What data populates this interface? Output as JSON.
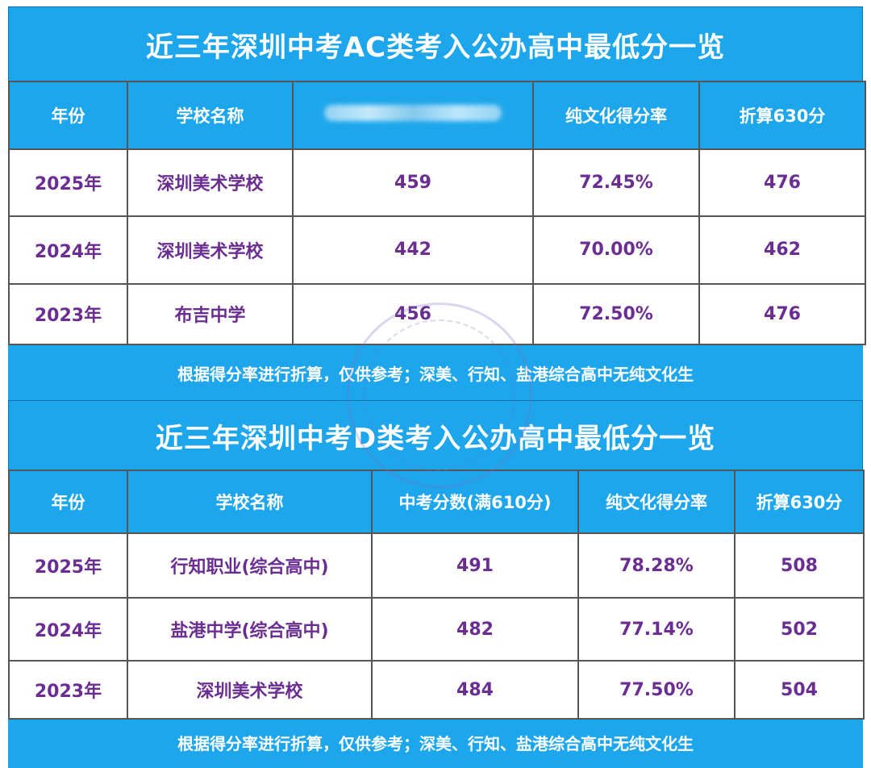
{
  "table_ac": {
    "title": "近三年深圳中考AC类考入公办高中最低分一览",
    "headers": [
      "年份",
      "学校名称",
      "",
      "纯文化得分率",
      "折算630分"
    ],
    "rows": [
      [
        "2025年",
        "深圳美术学校",
        "459",
        "72.45%",
        "476"
      ],
      [
        "2024年",
        "深圳美术学校",
        "442",
        "70.00%",
        "462"
      ],
      [
        "2023年",
        "布吉中学",
        "456",
        "72.50%",
        "476"
      ]
    ],
    "note": "根据得分率进行折算，仅供参考；深美、行知、盐港综合高中无纯文化生"
  },
  "table_d": {
    "title": "近三年深圳中考D类考入公办高中最低分一览",
    "headers": [
      "年份",
      "学校名称",
      "中考分数(满610分)",
      "纯文化得分率",
      "折算630分"
    ],
    "rows": [
      [
        "2025年",
        "行知职业(综合高中)",
        "491",
        "78.28%",
        "508"
      ],
      [
        "2024年",
        "盐港中学(综合高中)",
        "482",
        "77.14%",
        "502"
      ],
      [
        "2023年",
        "深圳美术学校",
        "484",
        "77.50%",
        "504"
      ]
    ],
    "note": "根据得分率进行折算，仅供参考；深美、行知、盐港综合高中无纯文化生"
  }
}
